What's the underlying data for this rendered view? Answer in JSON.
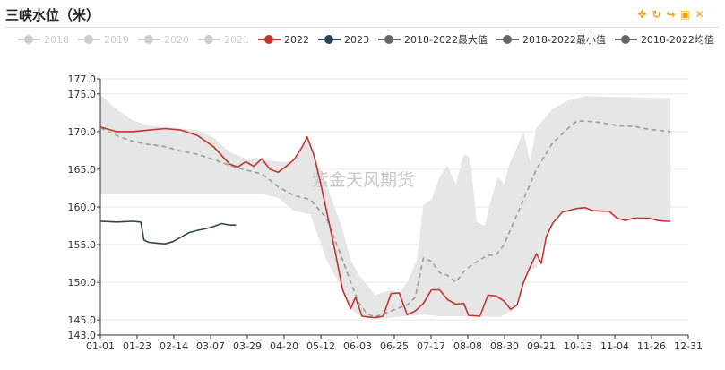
{
  "title": "三峡水位（米）",
  "toolbox": [
    {
      "name": "move-icon",
      "glyph": "✥"
    },
    {
      "name": "refresh-icon",
      "glyph": "↻"
    },
    {
      "name": "share-icon",
      "glyph": "↪"
    },
    {
      "name": "save-image-icon",
      "glyph": "▣"
    },
    {
      "name": "close-icon",
      "glyph": "✕"
    }
  ],
  "watermark": "紫金天风期货",
  "colors": {
    "s2022": "#c23531",
    "s2023": "#2f4554",
    "band": "#e6e6e6",
    "avg": "#9a9a9a",
    "inactive": "#cccccc",
    "extreme": "#666666"
  },
  "chart_data": {
    "type": "line",
    "title": "三峡水位（米）",
    "xlabel": "",
    "ylabel": "",
    "ylim": [
      143,
      177
    ],
    "yticks": [
      "143.0",
      "145.0",
      "150.0",
      "155.0",
      "160.0",
      "165.0",
      "170.0",
      "175.0",
      "177.0"
    ],
    "xticks": [
      "01-01",
      "01-23",
      "02-14",
      "03-07",
      "03-29",
      "04-20",
      "05-12",
      "06-03",
      "06-25",
      "07-17",
      "08-08",
      "08-30",
      "09-21",
      "10-13",
      "11-04",
      "11-26",
      "12-31"
    ],
    "legend": [
      {
        "name": "2018",
        "active": false
      },
      {
        "name": "2019",
        "active": false
      },
      {
        "name": "2020",
        "active": false
      },
      {
        "name": "2021",
        "active": false
      },
      {
        "name": "2022",
        "active": true
      },
      {
        "name": "2023",
        "active": true
      },
      {
        "name": "2018-2022最大值",
        "active": true
      },
      {
        "name": "2018-2022最小值",
        "active": true
      },
      {
        "name": "2018-2022均值",
        "active": true
      }
    ],
    "series": [
      {
        "name": "2022",
        "points": [
          [
            0,
            170.6
          ],
          [
            10,
            170.0
          ],
          [
            20,
            170.0
          ],
          [
            30,
            170.2
          ],
          [
            40,
            170.4
          ],
          [
            50,
            170.2
          ],
          [
            60,
            169.5
          ],
          [
            70,
            168.0
          ],
          [
            80,
            165.7
          ],
          [
            85,
            165.3
          ],
          [
            90,
            166.0
          ],
          [
            95,
            165.4
          ],
          [
            100,
            166.4
          ],
          [
            105,
            165.0
          ],
          [
            110,
            164.6
          ],
          [
            115,
            165.4
          ],
          [
            120,
            166.3
          ],
          [
            125,
            168.0
          ],
          [
            128,
            169.3
          ],
          [
            132,
            167.0
          ],
          [
            136,
            163.5
          ],
          [
            140,
            159.5
          ],
          [
            145,
            154.5
          ],
          [
            150,
            149.0
          ],
          [
            155,
            146.5
          ],
          [
            158,
            148.0
          ],
          [
            162,
            145.5
          ],
          [
            170,
            145.3
          ],
          [
            175,
            145.5
          ],
          [
            180,
            148.5
          ],
          [
            185,
            148.6
          ],
          [
            190,
            145.7
          ],
          [
            195,
            146.2
          ],
          [
            200,
            147.2
          ],
          [
            205,
            149.0
          ],
          [
            210,
            149.0
          ],
          [
            215,
            147.7
          ],
          [
            220,
            147.1
          ],
          [
            225,
            147.2
          ],
          [
            228,
            145.6
          ],
          [
            235,
            145.5
          ],
          [
            240,
            148.3
          ],
          [
            245,
            148.2
          ],
          [
            250,
            147.5
          ],
          [
            254,
            146.4
          ],
          [
            258,
            147.0
          ],
          [
            262,
            150.0
          ],
          [
            266,
            152.0
          ],
          [
            270,
            153.8
          ],
          [
            273,
            152.5
          ],
          [
            276,
            156.0
          ],
          [
            280,
            157.8
          ],
          [
            286,
            159.3
          ],
          [
            295,
            159.8
          ],
          [
            300,
            159.9
          ],
          [
            305,
            159.5
          ],
          [
            315,
            159.4
          ],
          [
            320,
            158.5
          ],
          [
            325,
            158.2
          ],
          [
            330,
            158.5
          ],
          [
            340,
            158.5
          ],
          [
            345,
            158.2
          ],
          [
            350,
            158.1
          ],
          [
            353,
            158.1
          ]
        ]
      },
      {
        "name": "2023",
        "points": [
          [
            0,
            158.1
          ],
          [
            10,
            158.0
          ],
          [
            20,
            158.1
          ],
          [
            25,
            158.0
          ],
          [
            27,
            155.6
          ],
          [
            30,
            155.3
          ],
          [
            35,
            155.2
          ],
          [
            40,
            155.1
          ],
          [
            45,
            155.4
          ],
          [
            50,
            156.0
          ],
          [
            55,
            156.6
          ],
          [
            60,
            156.9
          ],
          [
            65,
            157.1
          ],
          [
            70,
            157.4
          ],
          [
            75,
            157.8
          ],
          [
            80,
            157.6
          ],
          [
            84,
            157.6
          ]
        ]
      },
      {
        "name": "2018-2022均值",
        "points": [
          [
            0,
            170.5
          ],
          [
            10,
            169.5
          ],
          [
            20,
            168.7
          ],
          [
            30,
            168.3
          ],
          [
            40,
            168.0
          ],
          [
            50,
            167.4
          ],
          [
            60,
            167.0
          ],
          [
            70,
            166.3
          ],
          [
            80,
            165.5
          ],
          [
            90,
            164.9
          ],
          [
            100,
            164.4
          ],
          [
            110,
            162.7
          ],
          [
            120,
            161.5
          ],
          [
            130,
            161.0
          ],
          [
            140,
            158.5
          ],
          [
            150,
            153.0
          ],
          [
            155,
            150.0
          ],
          [
            160,
            147.3
          ],
          [
            165,
            145.8
          ],
          [
            170,
            145.4
          ],
          [
            180,
            146.2
          ],
          [
            190,
            147.0
          ],
          [
            195,
            148.0
          ],
          [
            200,
            153.2
          ],
          [
            205,
            152.8
          ],
          [
            210,
            151.3
          ],
          [
            215,
            150.9
          ],
          [
            220,
            150.0
          ],
          [
            225,
            151.4
          ],
          [
            230,
            152.3
          ],
          [
            235,
            153.0
          ],
          [
            240,
            153.6
          ],
          [
            245,
            153.6
          ],
          [
            250,
            155.0
          ],
          [
            260,
            160.0
          ],
          [
            270,
            165.0
          ],
          [
            280,
            168.5
          ],
          [
            290,
            170.5
          ],
          [
            295,
            171.4
          ],
          [
            300,
            171.4
          ],
          [
            310,
            171.2
          ],
          [
            320,
            170.8
          ],
          [
            330,
            170.7
          ],
          [
            340,
            170.3
          ],
          [
            353,
            170.0
          ]
        ]
      },
      {
        "name": "2018-2022最大值",
        "points": [
          [
            0,
            174.9
          ],
          [
            10,
            173.0
          ],
          [
            20,
            171.5
          ],
          [
            30,
            170.8
          ],
          [
            40,
            170.6
          ],
          [
            50,
            170.4
          ],
          [
            60,
            170.2
          ],
          [
            70,
            169.2
          ],
          [
            80,
            167.3
          ],
          [
            90,
            166.4
          ],
          [
            100,
            166.3
          ],
          [
            110,
            166.0
          ],
          [
            120,
            166.0
          ],
          [
            128,
            169.3
          ],
          [
            132,
            167.0
          ],
          [
            140,
            163.0
          ],
          [
            150,
            157.0
          ],
          [
            155,
            153.0
          ],
          [
            160,
            151.0
          ],
          [
            170,
            148.3
          ],
          [
            180,
            149.0
          ],
          [
            185,
            148.5
          ],
          [
            190,
            150.0
          ],
          [
            196,
            153.0
          ],
          [
            200,
            160.3
          ],
          [
            205,
            161.0
          ],
          [
            210,
            164.0
          ],
          [
            215,
            165.5
          ],
          [
            220,
            163.0
          ],
          [
            225,
            167.0
          ],
          [
            229,
            166.5
          ],
          [
            233,
            158.0
          ],
          [
            238,
            157.5
          ],
          [
            242,
            161.0
          ],
          [
            246,
            164.0
          ],
          [
            250,
            163.0
          ],
          [
            253,
            165.5
          ],
          [
            258,
            168.0
          ],
          [
            262,
            170.0
          ],
          [
            266,
            166.0
          ],
          [
            270,
            170.5
          ],
          [
            280,
            173.0
          ],
          [
            290,
            174.2
          ],
          [
            300,
            174.7
          ],
          [
            320,
            174.6
          ],
          [
            340,
            174.5
          ],
          [
            353,
            174.4
          ]
        ]
      },
      {
        "name": "2018-2022最小值",
        "points": [
          [
            0,
            161.7
          ],
          [
            30,
            161.7
          ],
          [
            60,
            161.7
          ],
          [
            100,
            161.7
          ],
          [
            110,
            161.2
          ],
          [
            120,
            159.5
          ],
          [
            130,
            159.0
          ],
          [
            140,
            153.0
          ],
          [
            150,
            149.0
          ],
          [
            155,
            146.5
          ],
          [
            160,
            145.7
          ],
          [
            165,
            145.2
          ],
          [
            175,
            145.2
          ],
          [
            190,
            145.5
          ],
          [
            200,
            145.7
          ],
          [
            210,
            145.5
          ],
          [
            220,
            145.5
          ],
          [
            230,
            145.5
          ],
          [
            240,
            145.4
          ],
          [
            248,
            145.4
          ],
          [
            255,
            146.3
          ],
          [
            260,
            148.5
          ],
          [
            265,
            151.5
          ],
          [
            270,
            152.0
          ],
          [
            274,
            155.0
          ],
          [
            276,
            156.0
          ],
          [
            280,
            157.8
          ],
          [
            286,
            159.3
          ],
          [
            295,
            159.8
          ],
          [
            300,
            159.9
          ],
          [
            305,
            159.5
          ],
          [
            315,
            159.4
          ],
          [
            320,
            158.5
          ],
          [
            325,
            158.2
          ],
          [
            330,
            158.5
          ],
          [
            340,
            158.5
          ],
          [
            345,
            158.2
          ],
          [
            353,
            158.1
          ]
        ]
      }
    ]
  }
}
